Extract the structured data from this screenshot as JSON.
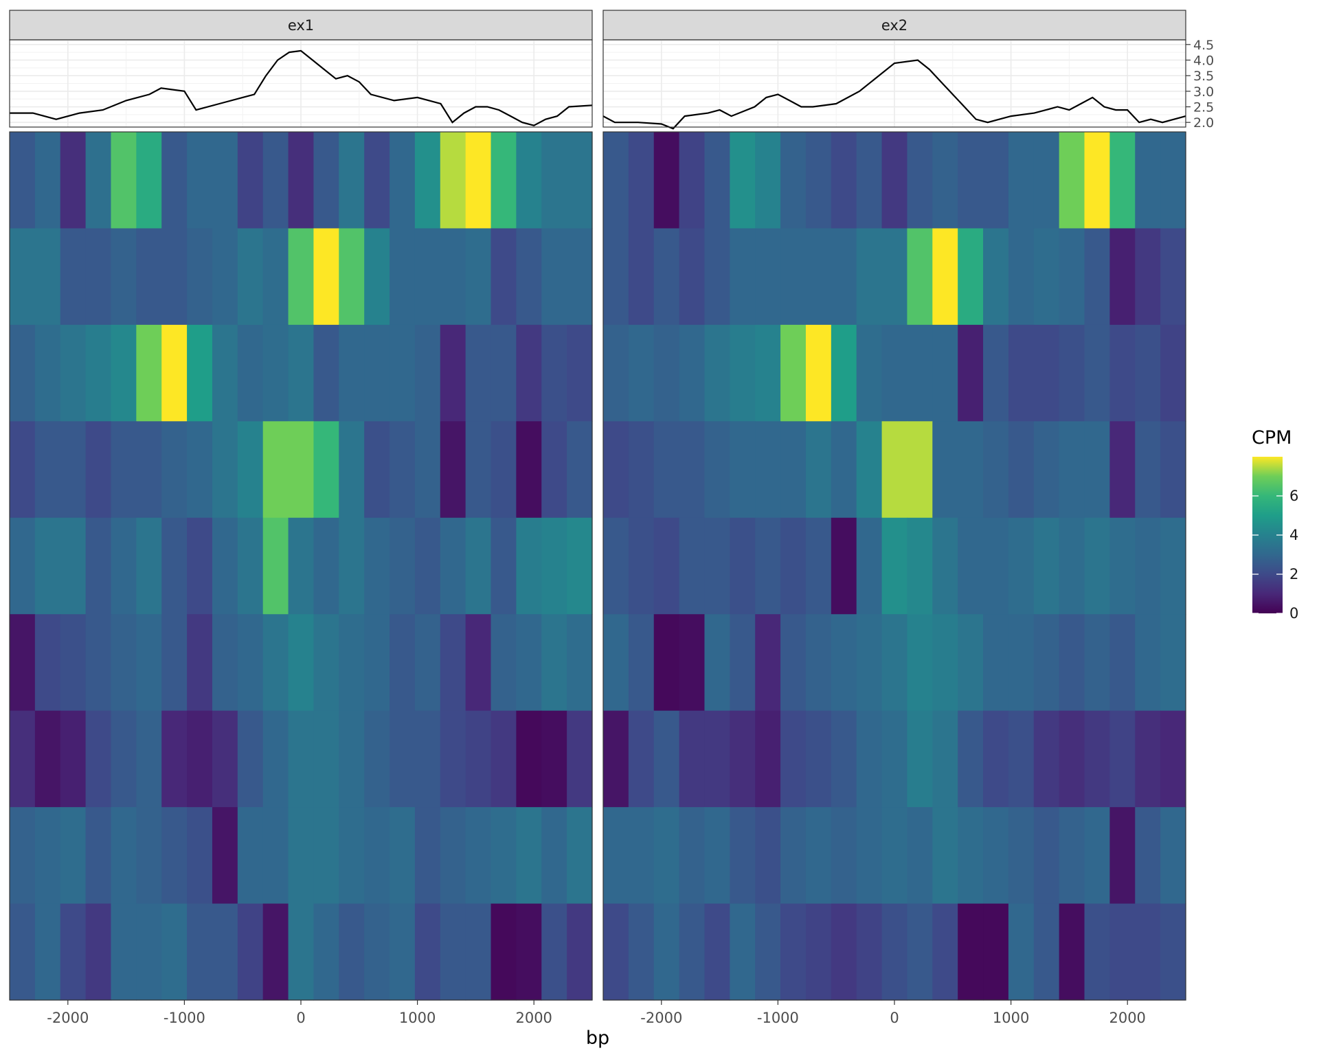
{
  "chart_data": {
    "type": "heatmap",
    "title": "",
    "xlabel": "bp",
    "ylabel": "",
    "x_range": [
      -2500,
      2500
    ],
    "x_ticks": [
      -2000,
      -1000,
      0,
      1000,
      2000
    ],
    "x_tick_labels": [
      "-2000",
      "-1000",
      "0",
      "1000",
      "2000"
    ],
    "profile": {
      "y_range": [
        1.85,
        4.65
      ],
      "y_ticks": [
        2.0,
        2.5,
        3.0,
        3.5,
        4.0,
        4.5
      ],
      "y_tick_labels": [
        "2.0",
        "2.5",
        "3.0",
        "3.5",
        "4.0",
        "4.5"
      ],
      "grid": true
    },
    "legend": {
      "title": "CPM",
      "placement": "right",
      "colorscale": "viridis",
      "range": [
        0,
        8
      ],
      "ticks": [
        0,
        2,
        4,
        6
      ],
      "tick_labels": [
        "0",
        "2",
        "4",
        "6"
      ]
    },
    "panels": [
      {
        "name": "ex1",
        "profile_x": [
          -2500,
          -2300,
          -2100,
          -1900,
          -1700,
          -1500,
          -1300,
          -1200,
          -1000,
          -900,
          -700,
          -500,
          -400,
          -300,
          -200,
          -100,
          0,
          100,
          200,
          300,
          400,
          500,
          600,
          800,
          1000,
          1100,
          1200,
          1300,
          1400,
          1500,
          1600,
          1700,
          1800,
          1900,
          2000,
          2100,
          2200,
          2300,
          2500
        ],
        "profile_y": [
          2.3,
          2.3,
          2.1,
          2.3,
          2.4,
          2.7,
          2.9,
          3.1,
          3.0,
          2.4,
          2.6,
          2.8,
          2.9,
          3.5,
          4.0,
          4.25,
          4.3,
          4.0,
          3.7,
          3.4,
          3.5,
          3.3,
          2.9,
          2.7,
          2.8,
          2.7,
          2.6,
          2.0,
          2.3,
          2.5,
          2.5,
          2.4,
          2.2,
          2.0,
          1.9,
          2.1,
          2.2,
          2.5,
          2.55
        ],
        "rows": [
          [
            2.5,
            3.0,
            1.2,
            3.3,
            6.5,
            5.5,
            2.5,
            3.0,
            3.0,
            1.8,
            2.5,
            1.2,
            2.5,
            3.5,
            2.0,
            3.0,
            4.5,
            7.5,
            8.0,
            6.0,
            4.0,
            3.5,
            3.5
          ],
          [
            3.5,
            3.5,
            2.5,
            2.5,
            2.8,
            2.5,
            2.5,
            2.8,
            3.0,
            3.5,
            3.2,
            6.5,
            8.0,
            6.5,
            4.0,
            3.0,
            3.0,
            3.0,
            3.2,
            2.0,
            2.5,
            3.0,
            3.0
          ],
          [
            2.8,
            3.2,
            3.5,
            3.8,
            4.2,
            7.0,
            8.0,
            5.0,
            3.5,
            3.0,
            3.2,
            3.5,
            2.5,
            3.0,
            3.0,
            3.0,
            2.8,
            1.0,
            2.5,
            2.5,
            1.5,
            2.2,
            2.0
          ],
          [
            2.0,
            2.5,
            2.5,
            2.0,
            2.5,
            2.5,
            2.8,
            3.0,
            3.5,
            4.0,
            7.0,
            7.0,
            6.0,
            3.5,
            2.2,
            2.5,
            2.8,
            0.5,
            2.5,
            2.2,
            0.3,
            2.0,
            2.5
          ],
          [
            3.0,
            3.5,
            3.5,
            2.5,
            3.0,
            3.5,
            2.5,
            2.0,
            3.0,
            3.5,
            6.5,
            3.5,
            3.0,
            3.5,
            3.0,
            2.8,
            2.5,
            3.0,
            3.5,
            2.5,
            3.8,
            4.0,
            4.2
          ],
          [
            0.5,
            2.0,
            2.2,
            2.5,
            2.8,
            3.0,
            2.5,
            1.5,
            2.8,
            3.0,
            3.5,
            4.0,
            3.5,
            3.2,
            3.0,
            2.5,
            2.8,
            2.0,
            1.0,
            2.8,
            3.0,
            3.5,
            3.2
          ],
          [
            1.2,
            0.5,
            0.8,
            2.0,
            2.5,
            2.8,
            1.0,
            0.8,
            1.2,
            2.5,
            3.0,
            3.5,
            3.5,
            3.2,
            2.8,
            2.5,
            2.5,
            2.0,
            1.8,
            1.5,
            0.2,
            0.3,
            1.5
          ],
          [
            2.8,
            3.0,
            3.2,
            2.5,
            3.0,
            2.8,
            2.5,
            2.2,
            0.5,
            3.0,
            3.0,
            3.5,
            3.5,
            3.2,
            3.0,
            3.2,
            2.5,
            2.8,
            3.0,
            3.2,
            3.5,
            3.0,
            3.5
          ],
          [
            2.5,
            3.0,
            2.0,
            1.5,
            3.0,
            3.0,
            3.2,
            2.5,
            2.5,
            1.8,
            0.5,
            3.5,
            3.0,
            2.5,
            2.8,
            3.0,
            2.0,
            2.5,
            2.5,
            0.2,
            0.3,
            2.2,
            1.5
          ]
        ]
      },
      {
        "name": "ex2",
        "profile_x": [
          -2500,
          -2400,
          -2200,
          -2000,
          -1900,
          -1800,
          -1600,
          -1500,
          -1400,
          -1200,
          -1100,
          -1000,
          -900,
          -800,
          -700,
          -500,
          -300,
          -200,
          0,
          200,
          300,
          400,
          500,
          600,
          700,
          800,
          1000,
          1200,
          1300,
          1400,
          1500,
          1600,
          1700,
          1800,
          1900,
          2000,
          2100,
          2200,
          2300,
          2500
        ],
        "profile_y": [
          2.2,
          2.0,
          2.0,
          1.95,
          1.8,
          2.2,
          2.3,
          2.4,
          2.2,
          2.5,
          2.8,
          2.9,
          2.7,
          2.5,
          2.5,
          2.6,
          3.0,
          3.3,
          3.9,
          4.0,
          3.7,
          3.3,
          2.9,
          2.5,
          2.1,
          2.0,
          2.2,
          2.3,
          2.4,
          2.5,
          2.4,
          2.6,
          2.8,
          2.5,
          2.4,
          2.4,
          2.0,
          2.1,
          2.0,
          2.2
        ],
        "rows": [
          [
            2.5,
            2.0,
            0.3,
            1.8,
            2.5,
            4.5,
            4.0,
            2.8,
            2.5,
            2.0,
            2.5,
            1.5,
            2.5,
            2.8,
            2.5,
            2.5,
            3.0,
            3.0,
            7.0,
            8.0,
            6.0,
            3.0,
            3.0
          ],
          [
            2.5,
            2.0,
            2.5,
            2.0,
            2.5,
            3.0,
            3.0,
            3.0,
            3.0,
            3.0,
            3.5,
            3.5,
            6.5,
            8.0,
            5.5,
            3.5,
            3.0,
            3.2,
            3.0,
            2.5,
            0.8,
            1.5,
            2.0
          ],
          [
            2.8,
            3.0,
            2.8,
            3.0,
            3.5,
            3.8,
            4.0,
            7.0,
            8.0,
            5.0,
            3.2,
            3.0,
            3.0,
            3.0,
            0.8,
            2.5,
            2.0,
            2.0,
            2.2,
            2.5,
            2.0,
            2.2,
            1.8
          ],
          [
            2.0,
            2.2,
            2.5,
            2.5,
            2.8,
            3.0,
            3.0,
            3.0,
            3.5,
            3.0,
            4.0,
            7.5,
            7.5,
            3.0,
            3.0,
            2.8,
            2.5,
            2.8,
            3.0,
            3.0,
            1.0,
            2.5,
            2.2
          ],
          [
            2.5,
            2.2,
            2.0,
            2.5,
            2.5,
            2.2,
            2.5,
            2.2,
            2.5,
            0.3,
            3.0,
            4.5,
            4.2,
            3.5,
            3.0,
            3.0,
            3.2,
            3.5,
            3.2,
            3.5,
            3.2,
            3.0,
            3.2
          ],
          [
            3.0,
            2.5,
            0.2,
            0.3,
            3.0,
            2.5,
            1.0,
            2.5,
            2.8,
            3.0,
            3.2,
            3.5,
            4.0,
            3.8,
            3.5,
            3.0,
            3.0,
            2.8,
            2.5,
            2.8,
            2.5,
            3.0,
            3.2
          ],
          [
            0.5,
            2.0,
            2.5,
            1.5,
            1.5,
            1.2,
            0.8,
            2.0,
            2.2,
            2.5,
            3.0,
            3.2,
            3.8,
            3.5,
            2.5,
            2.0,
            2.2,
            1.5,
            1.2,
            1.5,
            1.8,
            1.2,
            1.0
          ],
          [
            3.0,
            3.0,
            3.2,
            2.8,
            3.0,
            2.5,
            2.2,
            2.8,
            3.0,
            2.8,
            3.0,
            3.2,
            3.0,
            3.5,
            3.2,
            3.0,
            2.8,
            2.5,
            2.8,
            3.0,
            0.5,
            2.5,
            3.0
          ],
          [
            2.0,
            2.5,
            3.0,
            2.5,
            2.0,
            3.0,
            2.5,
            2.0,
            1.8,
            1.5,
            1.8,
            2.2,
            2.5,
            2.0,
            0.2,
            0.2,
            3.0,
            2.5,
            0.3,
            2.2,
            2.0,
            2.0,
            2.2
          ]
        ]
      }
    ]
  }
}
